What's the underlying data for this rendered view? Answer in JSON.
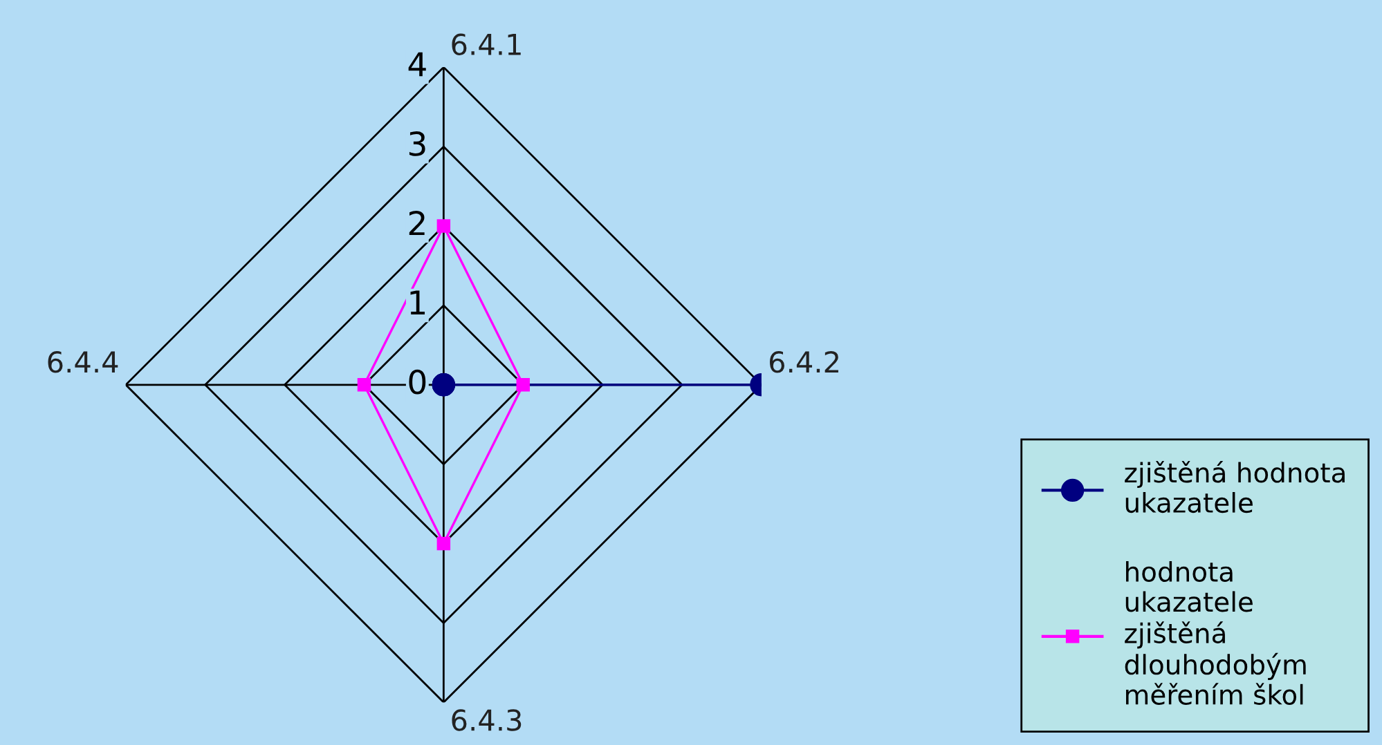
{
  "chart_data": {
    "type": "radar",
    "categories": [
      "6.4.1",
      "6.4.2",
      "6.4.3",
      "6.4.4"
    ],
    "ylim": [
      0,
      4
    ],
    "yticks": [
      0,
      1,
      2,
      3,
      4
    ],
    "grid": true,
    "legend": "bottom right",
    "line_style": "solid",
    "series": [
      {
        "name": "zjištěná hodnota ukazatele",
        "color": "#000080",
        "marker": "circle",
        "values": [
          0,
          4,
          0,
          0
        ]
      },
      {
        "name": "hodnota ukazatele zjištěná dlouhodobým měřením škol",
        "color": "#ff00ff",
        "marker": "square",
        "values": [
          2,
          1,
          2,
          1
        ]
      }
    ]
  }
}
